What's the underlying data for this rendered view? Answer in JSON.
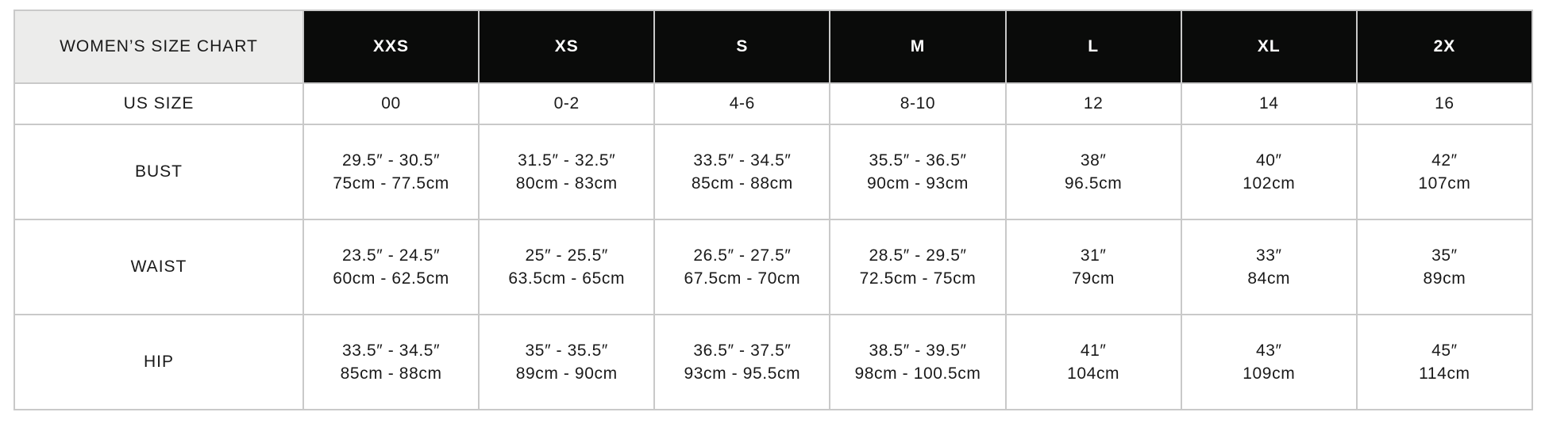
{
  "title": "WOMEN’S SIZE CHART",
  "sizes": [
    "XXS",
    "XS",
    "S",
    "M",
    "L",
    "XL",
    "2X"
  ],
  "us_size": {
    "label": "US SIZE",
    "values": [
      "00",
      "0-2",
      "4-6",
      "8-10",
      "12",
      "14",
      "16"
    ]
  },
  "rows": [
    {
      "label": "BUST",
      "cells": [
        {
          "in": "29.5″ - 30.5″",
          "cm": "75cm - 77.5cm"
        },
        {
          "in": "31.5″ - 32.5″",
          "cm": "80cm - 83cm"
        },
        {
          "in": "33.5″ - 34.5″",
          "cm": "85cm - 88cm"
        },
        {
          "in": "35.5″ - 36.5″",
          "cm": "90cm - 93cm"
        },
        {
          "in": "38″",
          "cm": "96.5cm"
        },
        {
          "in": "40″",
          "cm": "102cm"
        },
        {
          "in": "42″",
          "cm": "107cm"
        }
      ]
    },
    {
      "label": "WAIST",
      "cells": [
        {
          "in": "23.5″ - 24.5″",
          "cm": "60cm - 62.5cm"
        },
        {
          "in": "25″ - 25.5″",
          "cm": "63.5cm - 65cm"
        },
        {
          "in": "26.5″ - 27.5″",
          "cm": "67.5cm - 70cm"
        },
        {
          "in": "28.5″ - 29.5″",
          "cm": "72.5cm - 75cm"
        },
        {
          "in": "31″",
          "cm": "79cm"
        },
        {
          "in": "33″",
          "cm": "84cm"
        },
        {
          "in": "35″",
          "cm": "89cm"
        }
      ]
    },
    {
      "label": "HIP",
      "cells": [
        {
          "in": "33.5″ - 34.5″",
          "cm": "85cm - 88cm"
        },
        {
          "in": "35″ - 35.5″",
          "cm": "89cm - 90cm"
        },
        {
          "in": "36.5″ - 37.5″",
          "cm": "93cm - 95.5cm"
        },
        {
          "in": "38.5″ - 39.5″",
          "cm": "98cm - 100.5cm"
        },
        {
          "in": "41″",
          "cm": "104cm"
        },
        {
          "in": "43″",
          "cm": "109cm"
        },
        {
          "in": "45″",
          "cm": "114cm"
        }
      ]
    }
  ],
  "colors": {
    "header_bg": "#0a0b0a",
    "header_text": "#ffffff",
    "corner_bg": "#ececeb",
    "border": "#c9c9c9"
  }
}
